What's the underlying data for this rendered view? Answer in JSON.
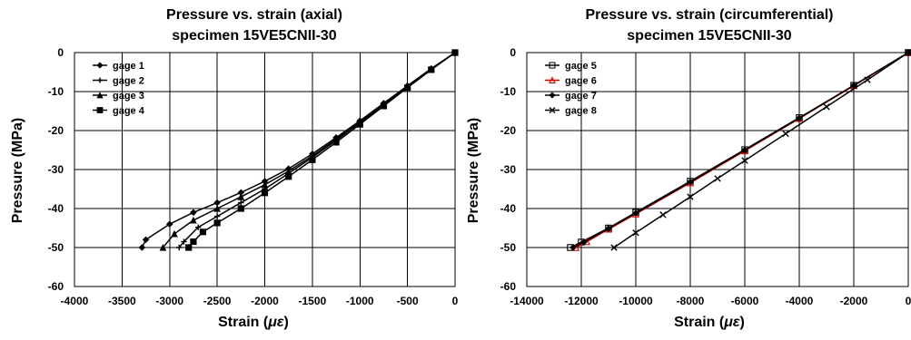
{
  "chart_data": [
    {
      "type": "line",
      "title": "Pressure vs. strain (axial)",
      "subtitle": "specimen 15VE5CNII-30",
      "xlabel_text": "Strain (",
      "xlabel_symbol": "με",
      "xlabel_end": ")",
      "ylabel": "Pressure (MPa)",
      "xlim": [
        -4000,
        0
      ],
      "ylim": [
        -60,
        0
      ],
      "xticks": [
        -4000,
        -3500,
        -3000,
        -2500,
        -2000,
        -1500,
        -1000,
        -500,
        0
      ],
      "yticks": [
        0,
        -10,
        -20,
        -30,
        -40,
        -50,
        -60
      ],
      "grid": true,
      "legend_position": "top-left",
      "series": [
        {
          "name": "gage 1",
          "marker": "diamond",
          "color": "#000000",
          "x": [
            0,
            -250,
            -500,
            -750,
            -1000,
            -1250,
            -1500,
            -1750,
            -2000,
            -2250,
            -2500,
            -2750,
            -3000,
            -3250,
            -3290
          ],
          "y": [
            0,
            -4.1,
            -8.5,
            -13.0,
            -17.5,
            -21.8,
            -26.0,
            -29.8,
            -33.0,
            -35.9,
            -38.5,
            -41.0,
            -44.0,
            -48.0,
            -50.0
          ]
        },
        {
          "name": "gage 2",
          "marker": "plus",
          "color": "#000000",
          "x": [
            0,
            -250,
            -500,
            -750,
            -1000,
            -1250,
            -1500,
            -1750,
            -2000,
            -2250,
            -2500,
            -2700,
            -2850,
            -2900
          ],
          "y": [
            0,
            -4.3,
            -8.8,
            -13.4,
            -18.0,
            -22.5,
            -26.9,
            -31.0,
            -35.0,
            -38.5,
            -42.0,
            -44.8,
            -48.5,
            -50.0
          ]
        },
        {
          "name": "gage 3",
          "marker": "triangle",
          "color": "#000000",
          "x": [
            0,
            -250,
            -500,
            -750,
            -1000,
            -1250,
            -1500,
            -1750,
            -2000,
            -2250,
            -2500,
            -2750,
            -2950,
            -3070
          ],
          "y": [
            0,
            -4.2,
            -8.6,
            -13.2,
            -17.8,
            -22.2,
            -26.5,
            -30.4,
            -33.9,
            -37.0,
            -40.0,
            -43.0,
            -46.5,
            -50.0
          ]
        },
        {
          "name": "gage 4",
          "marker": "square",
          "color": "#000000",
          "x": [
            0,
            -250,
            -500,
            -750,
            -1000,
            -1250,
            -1500,
            -1750,
            -2000,
            -2250,
            -2500,
            -2650,
            -2750,
            -2800
          ],
          "y": [
            0,
            -4.4,
            -9.0,
            -13.7,
            -18.4,
            -23.0,
            -27.5,
            -31.8,
            -36.0,
            -40.0,
            -43.7,
            -46.0,
            -48.5,
            -50.0
          ]
        }
      ]
    },
    {
      "type": "line",
      "title": "Pressure vs. strain (circumferential)",
      "subtitle": "specimen 15VE5CNII-30",
      "xlabel_text": "Strain (",
      "xlabel_symbol": "με",
      "xlabel_end": ")",
      "ylabel": "Pressure (MPa)",
      "xlim": [
        -14000,
        0
      ],
      "ylim": [
        -60,
        0
      ],
      "xticks": [
        -14000,
        -12000,
        -10000,
        -8000,
        -6000,
        -4000,
        -2000,
        0
      ],
      "yticks": [
        0,
        -10,
        -20,
        -30,
        -40,
        -50,
        -60
      ],
      "grid": true,
      "legend_position": "top-left",
      "series": [
        {
          "name": "gage 5",
          "marker": "square-open",
          "color": "#000000",
          "x": [
            0,
            -2000,
            -4000,
            -6000,
            -8000,
            -10000,
            -11000,
            -12000,
            -12400
          ],
          "y": [
            0,
            -8.4,
            -16.7,
            -24.9,
            -33.0,
            -41.0,
            -45.0,
            -48.6,
            -50.0
          ]
        },
        {
          "name": "gage 6",
          "marker": "triangle-open",
          "color": "#d40000",
          "x": [
            0,
            -2000,
            -4000,
            -6000,
            -8000,
            -10000,
            -11000,
            -11800,
            -12200
          ],
          "y": [
            0,
            -8.5,
            -16.9,
            -25.2,
            -33.4,
            -41.4,
            -45.3,
            -48.5,
            -50.0
          ]
        },
        {
          "name": "gage 7",
          "marker": "diamond",
          "color": "#000000",
          "x": [
            0,
            -2000,
            -4000,
            -6000,
            -8000,
            -10000,
            -11000,
            -11900,
            -12300
          ],
          "y": [
            0,
            -8.4,
            -16.8,
            -25.0,
            -33.2,
            -41.2,
            -45.1,
            -48.6,
            -50.0
          ]
        },
        {
          "name": "gage 8",
          "marker": "x",
          "color": "#000000",
          "x": [
            0,
            -1500,
            -3000,
            -4500,
            -6000,
            -7000,
            -8000,
            -9000,
            -10000,
            -10800
          ],
          "y": [
            0,
            -7.0,
            -13.9,
            -20.8,
            -27.7,
            -32.3,
            -37.0,
            -41.6,
            -46.2,
            -50.0
          ]
        }
      ]
    }
  ]
}
